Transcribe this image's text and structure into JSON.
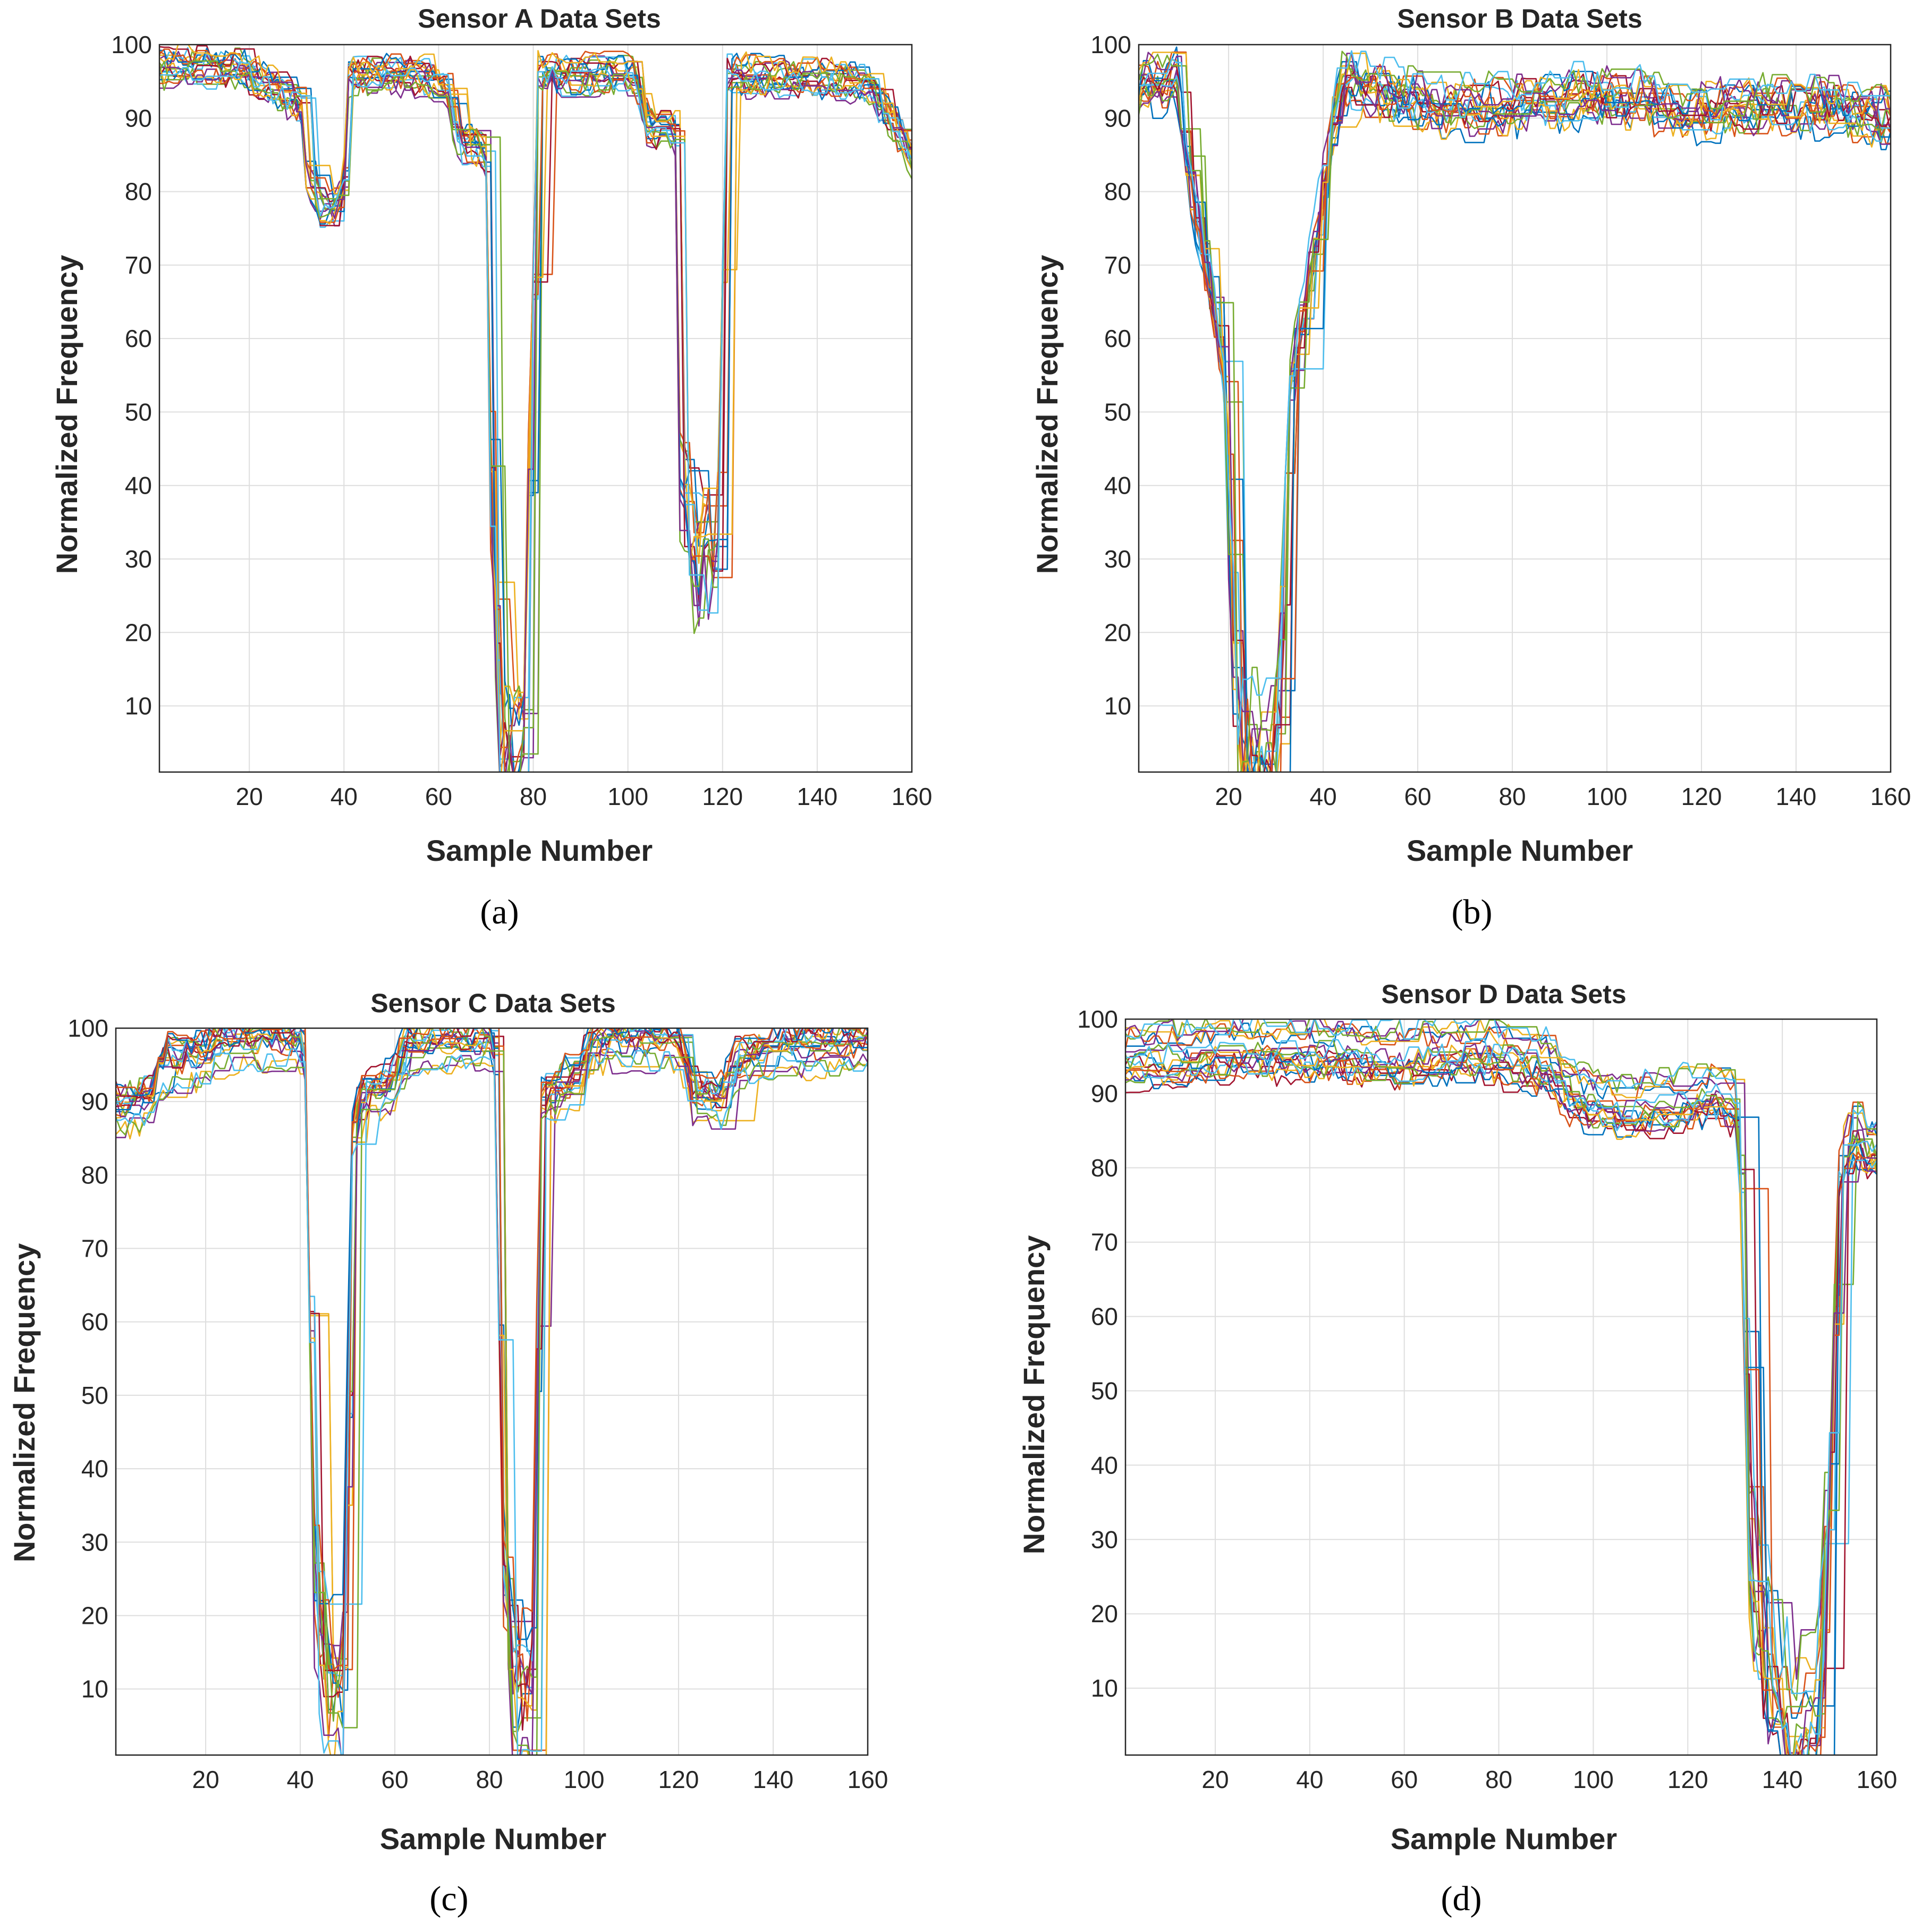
{
  "figure": {
    "palette": [
      "#0072BD",
      "#D95319",
      "#EDB120",
      "#7E2F8E",
      "#77AC30",
      "#4DBEEE",
      "#A2142F"
    ]
  },
  "chart_data": [
    {
      "panel": "a",
      "caption": "(a)",
      "type": "line",
      "title": "Sensor A Data Sets",
      "xlabel": "Sample Number",
      "ylabel": "Normalized Frequency",
      "xlim": [
        1,
        160
      ],
      "ylim": [
        1,
        100
      ],
      "xticks": [
        20,
        40,
        60,
        80,
        100,
        120,
        140,
        160
      ],
      "yticks": [
        10,
        20,
        30,
        40,
        50,
        60,
        70,
        80,
        90,
        100
      ],
      "grid": true,
      "legend": "none",
      "series_count": 20,
      "profile": [
        [
          1,
          97
        ],
        [
          18,
          97
        ],
        [
          20,
          96
        ],
        [
          28,
          93
        ],
        [
          31,
          92
        ],
        [
          32,
          83
        ],
        [
          35,
          78
        ],
        [
          38,
          78
        ],
        [
          40,
          82
        ],
        [
          41,
          96
        ],
        [
          57,
          96
        ],
        [
          59,
          95
        ],
        [
          62,
          93
        ],
        [
          64,
          87
        ],
        [
          68,
          86
        ],
        [
          70,
          85
        ],
        [
          71,
          40
        ],
        [
          73,
          5
        ],
        [
          78,
          5
        ],
        [
          79,
          40
        ],
        [
          81,
          96
        ],
        [
          101,
          96
        ],
        [
          104,
          89
        ],
        [
          110,
          88
        ],
        [
          111,
          40
        ],
        [
          114,
          30
        ],
        [
          118,
          30
        ],
        [
          119,
          40
        ],
        [
          121,
          96
        ],
        [
          150,
          95
        ],
        [
          155,
          90
        ],
        [
          160,
          85
        ]
      ],
      "jitter": [
        3,
        4
      ]
    },
    {
      "panel": "b",
      "caption": "(b)",
      "type": "line",
      "title": "Sensor B Data Sets",
      "xlabel": "Sample Number",
      "ylabel": "Normalized Frequency",
      "xlim": [
        1,
        160
      ],
      "ylim": [
        1,
        100
      ],
      "xticks": [
        20,
        40,
        60,
        80,
        100,
        120,
        140,
        160
      ],
      "yticks": [
        10,
        20,
        30,
        40,
        50,
        60,
        70,
        80,
        90,
        100
      ],
      "grid": true,
      "legend": "none",
      "series_count": 20,
      "profile": [
        [
          1,
          95
        ],
        [
          9,
          97
        ],
        [
          12,
          80
        ],
        [
          16,
          68
        ],
        [
          19,
          55
        ],
        [
          21,
          20
        ],
        [
          22,
          3
        ],
        [
          29,
          3
        ],
        [
          31,
          20
        ],
        [
          33,
          55
        ],
        [
          37,
          70
        ],
        [
          40,
          82
        ],
        [
          42,
          90
        ],
        [
          44,
          96
        ],
        [
          55,
          94
        ],
        [
          65,
          92
        ],
        [
          80,
          93
        ],
        [
          100,
          94
        ],
        [
          120,
          92
        ],
        [
          140,
          93
        ],
        [
          160,
          91
        ]
      ],
      "jitter": [
        6,
        6
      ]
    },
    {
      "panel": "c",
      "caption": "(c)",
      "type": "line",
      "title": "Sensor C Data Sets",
      "xlabel": "Sample Number",
      "ylabel": "Normalized Frequency",
      "xlim": [
        1,
        160
      ],
      "ylim": [
        1,
        100
      ],
      "xticks": [
        20,
        40,
        60,
        80,
        100,
        120,
        140,
        160
      ],
      "yticks": [
        10,
        20,
        30,
        40,
        50,
        60,
        70,
        80,
        90,
        100
      ],
      "grid": true,
      "legend": "none",
      "series_count": 20,
      "profile": [
        [
          1,
          89
        ],
        [
          8,
          90
        ],
        [
          11,
          95
        ],
        [
          20,
          96
        ],
        [
          23,
          98
        ],
        [
          40,
          98
        ],
        [
          41,
          95
        ],
        [
          43,
          25
        ],
        [
          45,
          10
        ],
        [
          49,
          10
        ],
        [
          51,
          85
        ],
        [
          53,
          91
        ],
        [
          58,
          92
        ],
        [
          60,
          93
        ],
        [
          62,
          97
        ],
        [
          80,
          98
        ],
        [
          81,
          95
        ],
        [
          83,
          25
        ],
        [
          85,
          8
        ],
        [
          89,
          8
        ],
        [
          91,
          90
        ],
        [
          95,
          92
        ],
        [
          99,
          93
        ],
        [
          101,
          98
        ],
        [
          120,
          98
        ],
        [
          123,
          90
        ],
        [
          129,
          90
        ],
        [
          132,
          95
        ],
        [
          140,
          97
        ],
        [
          160,
          98
        ]
      ],
      "jitter": [
        5,
        4
      ]
    },
    {
      "panel": "d",
      "caption": "(d)",
      "type": "line",
      "title": "Sensor D Data Sets",
      "xlabel": "Sample Number",
      "ylabel": "Normalized Frequency",
      "xlim": [
        1,
        160
      ],
      "ylim": [
        1,
        100
      ],
      "xticks": [
        20,
        40,
        60,
        80,
        100,
        120,
        140,
        160
      ],
      "yticks": [
        10,
        20,
        30,
        40,
        50,
        60,
        70,
        80,
        90,
        100
      ],
      "grid": true,
      "legend": "none",
      "series_count": 20,
      "profile": [
        [
          1,
          95
        ],
        [
          20,
          96
        ],
        [
          40,
          96
        ],
        [
          60,
          95
        ],
        [
          75,
          96
        ],
        [
          90,
          94
        ],
        [
          95,
          90
        ],
        [
          105,
          88
        ],
        [
          115,
          89
        ],
        [
          125,
          90
        ],
        [
          130,
          89
        ],
        [
          131,
          80
        ],
        [
          133,
          30
        ],
        [
          136,
          15
        ],
        [
          140,
          5
        ],
        [
          145,
          5
        ],
        [
          148,
          12
        ],
        [
          150,
          40
        ],
        [
          152,
          80
        ],
        [
          155,
          85
        ],
        [
          160,
          82
        ]
      ],
      "jitter": [
        6,
        4
      ]
    }
  ]
}
